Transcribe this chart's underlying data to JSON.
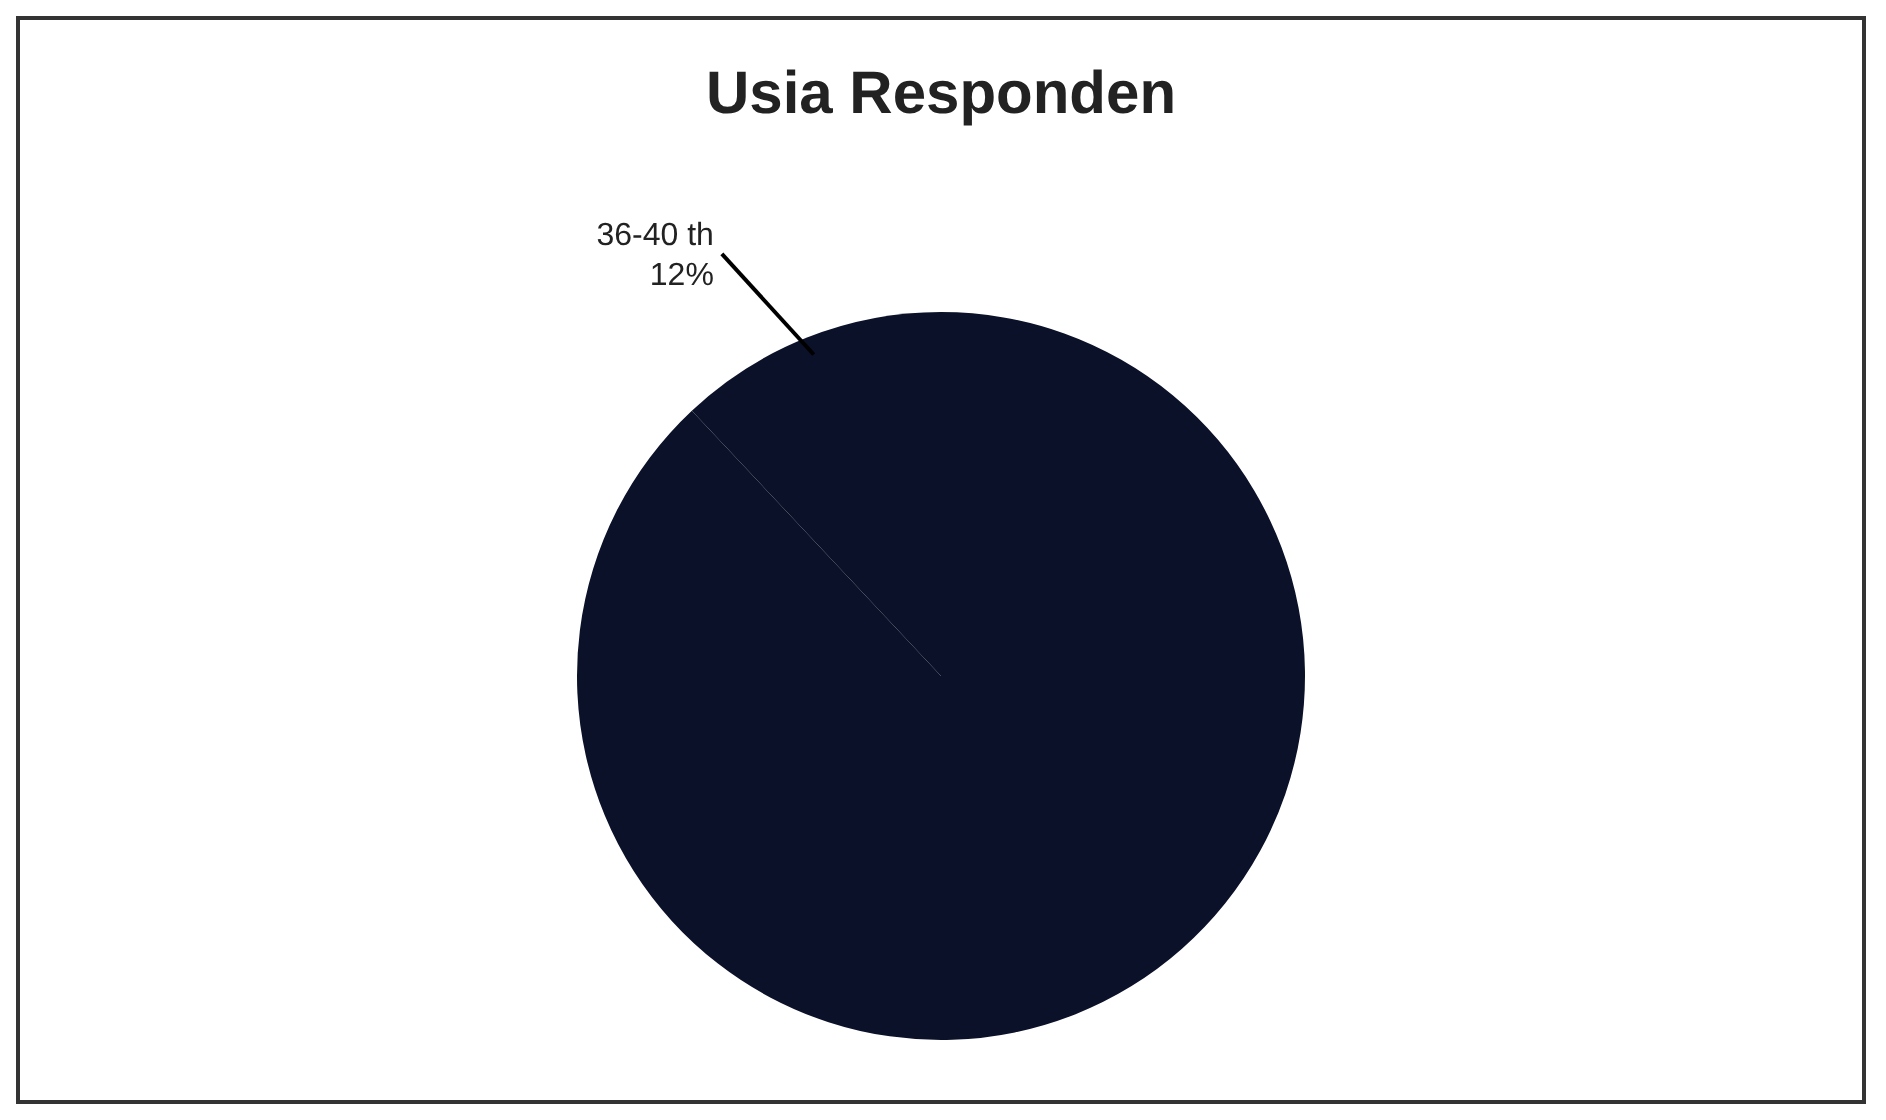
{
  "chart_data": {
    "type": "pie",
    "title": "Usia Responden",
    "categories": [
      "36-40 th",
      null
    ],
    "values": [
      12,
      88
    ],
    "value_labels": [
      "12%",
      null
    ],
    "colors": [
      "#0a1128",
      "#0a1128"
    ],
    "legend": false
  }
}
